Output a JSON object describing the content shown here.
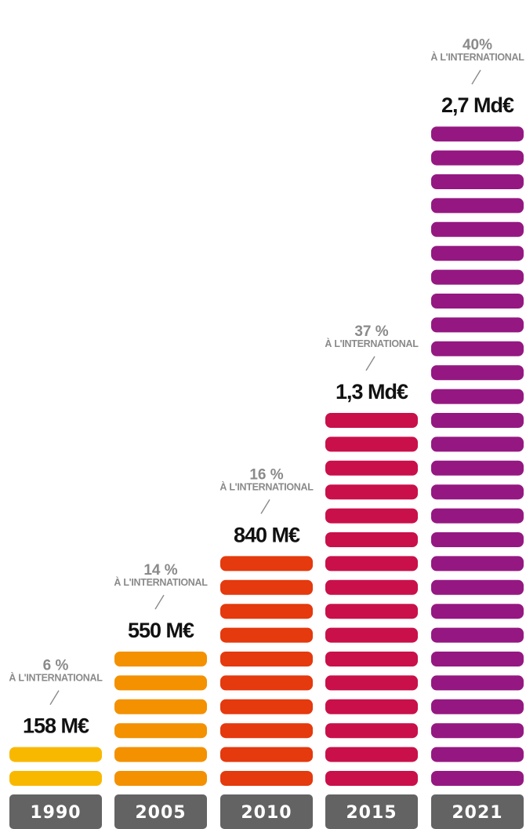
{
  "chart_data": {
    "type": "bar",
    "categories": [
      "1990",
      "2005",
      "2010",
      "2015",
      "2021"
    ],
    "values": [
      158,
      550,
      840,
      1300,
      2700
    ],
    "value_labels": [
      "158 M€",
      "550 M€",
      "840 M€",
      "1,3 Md€",
      "2,7 Md€"
    ],
    "international_share_labels": [
      "6 %",
      "14 %",
      "16 %",
      "37 %",
      "40%"
    ],
    "international_share": [
      6,
      14,
      16,
      37,
      40
    ],
    "international_caption": "À L'INTERNATIONAL",
    "segments": [
      2,
      6,
      10,
      16,
      28
    ],
    "colors": [
      "#f9b800",
      "#f39100",
      "#e5390e",
      "#c9104b",
      "#951882"
    ],
    "axis_color": "#636363"
  }
}
